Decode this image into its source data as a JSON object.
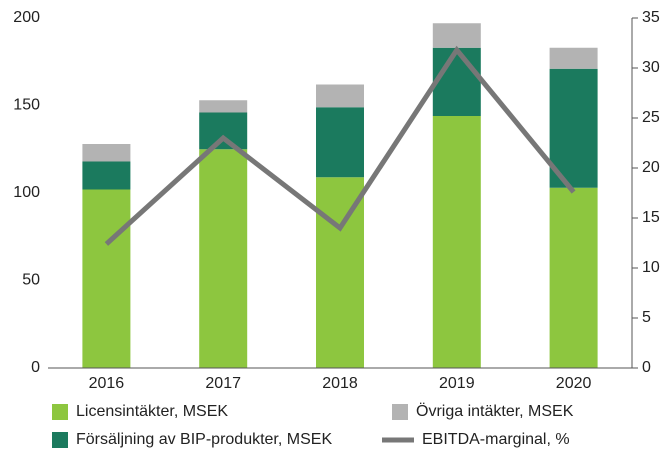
{
  "chart_data": {
    "type": "bar",
    "categories": [
      "2016",
      "2017",
      "2018",
      "2019",
      "2020"
    ],
    "stacked": true,
    "series": [
      {
        "name": "Licensintäkter, MSEK",
        "color": "#8dc63f",
        "values": [
          102,
          125,
          109,
          144,
          103
        ]
      },
      {
        "name": "Försäljning av BIP-produkter, MSEK",
        "color": "#1b7a5e",
        "values": [
          16,
          21,
          40,
          39,
          68
        ]
      },
      {
        "name": "Övriga intäkter, MSEK",
        "color": "#b3b3b3",
        "values": [
          10,
          7,
          13,
          14,
          12
        ]
      },
      {
        "name": "EBITDA-marginal, %",
        "color": "#777777",
        "type": "line",
        "axis": "y2",
        "values": [
          12.4,
          23,
          14,
          31.8,
          17.6
        ]
      }
    ],
    "ylim": [
      0,
      200
    ],
    "yticks": [
      0,
      50,
      100,
      150,
      200
    ],
    "y2lim": [
      0,
      35
    ],
    "y2ticks": [
      0,
      5,
      10,
      15,
      20,
      25,
      30,
      35
    ]
  }
}
